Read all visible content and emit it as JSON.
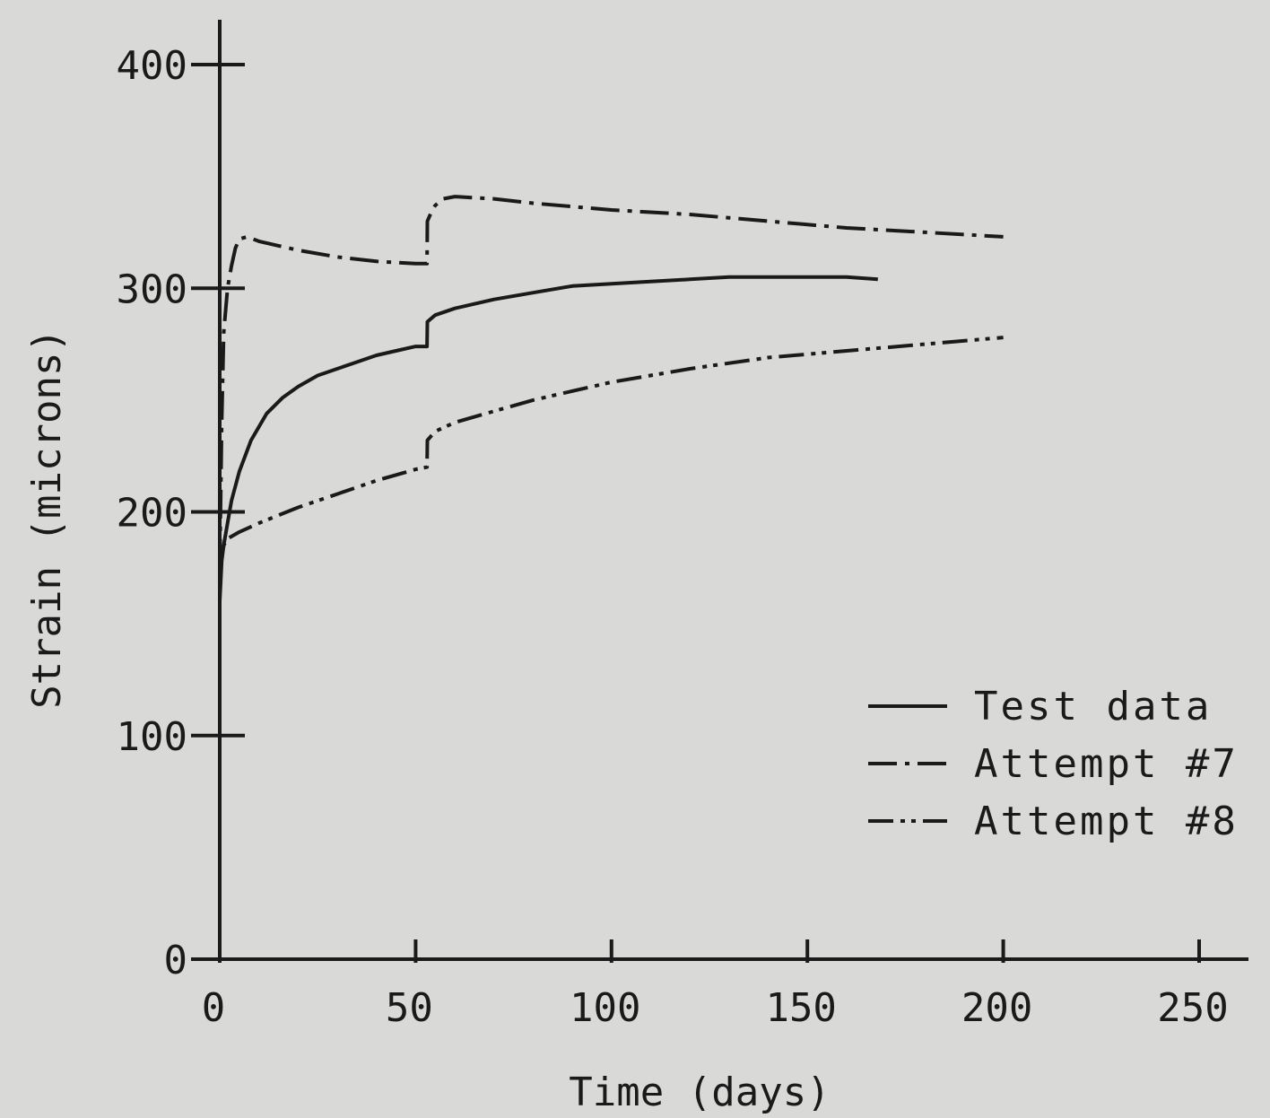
{
  "chart_data": {
    "type": "line",
    "xlabel": "Time (days)",
    "ylabel": "Strain (microns)",
    "xlim": [
      0,
      250
    ],
    "ylim": [
      0,
      400
    ],
    "x_ticks": [
      0,
      50,
      100,
      150,
      200,
      250
    ],
    "y_ticks": [
      0,
      100,
      200,
      300,
      400
    ],
    "grid": false,
    "legend_position": "right",
    "series": [
      {
        "name": "Test data",
        "dash": "solid",
        "x": [
          0,
          0.5,
          1,
          2,
          3,
          5,
          8,
          12,
          16,
          20,
          25,
          30,
          35,
          40,
          45,
          50,
          52.9,
          53,
          55,
          60,
          65,
          70,
          80,
          90,
          100,
          110,
          120,
          130,
          140,
          150,
          160,
          168
        ],
        "y": [
          160,
          178,
          185,
          195,
          205,
          218,
          232,
          244,
          251,
          256,
          261,
          264,
          267,
          270,
          272,
          274,
          274,
          285,
          288,
          291,
          293,
          295,
          298,
          301,
          302,
          303,
          304,
          305,
          305,
          305,
          305,
          304
        ]
      },
      {
        "name": "Attempt #7",
        "dash": "dash-dot",
        "x": [
          0,
          0.5,
          1,
          2,
          3,
          4,
          5,
          7,
          10,
          15,
          20,
          30,
          40,
          50,
          52.9,
          53,
          54,
          55,
          57,
          60,
          70,
          80,
          100,
          120,
          140,
          160,
          180,
          200
        ],
        "y": [
          175,
          240,
          280,
          300,
          310,
          318,
          322,
          323,
          321,
          319,
          317,
          314,
          312,
          311,
          311,
          330,
          334,
          337,
          340,
          341,
          340,
          338,
          335,
          333,
          330,
          327,
          325,
          323
        ]
      },
      {
        "name": "Attempt #8",
        "dash": "dash-dot-dot",
        "x": [
          0,
          0.5,
          1,
          2,
          3,
          5,
          10,
          20,
          30,
          40,
          50,
          52.9,
          53,
          55,
          60,
          70,
          80,
          100,
          120,
          140,
          160,
          180,
          200
        ],
        "y": [
          165,
          180,
          185,
          188,
          189,
          191,
          195,
          202,
          208,
          214,
          219,
          220,
          232,
          236,
          240,
          245,
          250,
          258,
          264,
          269,
          272,
          275,
          278
        ]
      }
    ]
  }
}
